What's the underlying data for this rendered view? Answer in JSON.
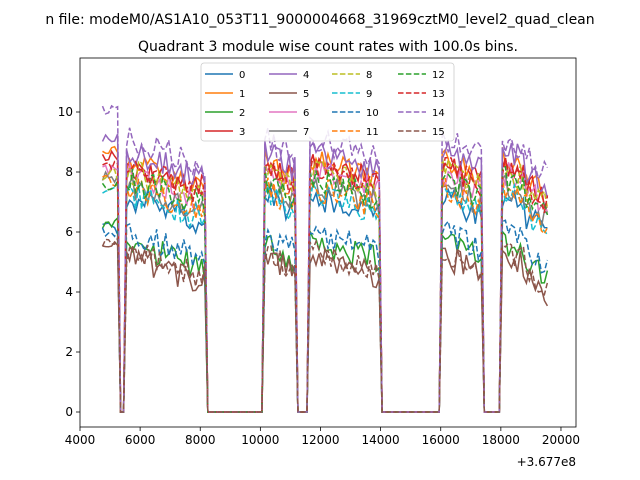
{
  "figure": {
    "suptitle": "n file: modeM0/AS1A10_053T11_9000004668_31969cztM0_level2_quad_clean",
    "offset_label": "+3.677e8"
  },
  "chart_data": {
    "type": "line",
    "title": "Quadrant 3 module wise count rates with 100.0s bins.",
    "xlabel": "",
    "ylabel": "",
    "xlim": [
      4000,
      20500
    ],
    "ylim": [
      -0.5,
      11.8
    ],
    "x_offset": 367700000,
    "xticks": [
      4000,
      6000,
      8000,
      10000,
      12000,
      14000,
      16000,
      18000,
      20000
    ],
    "yticks": [
      0,
      2,
      4,
      6,
      8,
      10
    ],
    "grid": false,
    "legend": {
      "placement": "top-center",
      "columns": 4
    },
    "segments": [
      [
        4750,
        5250
      ],
      [
        5550,
        8150
      ],
      [
        10150,
        11150
      ],
      [
        11650,
        13950
      ],
      [
        16050,
        17350
      ],
      [
        18050,
        19550
      ]
    ],
    "gaps_zero": [
      [
        5350,
        5450
      ],
      [
        8350,
        10050
      ],
      [
        11250,
        11550
      ],
      [
        14150,
        15950
      ],
      [
        17450,
        17950
      ]
    ],
    "series": [
      {
        "name": "0",
        "style": "solid",
        "color": "#1f77b4",
        "level": 7.2,
        "start": 6.1
      },
      {
        "name": "1",
        "style": "solid",
        "color": "#ff7f0e",
        "level": 8.4,
        "start": 8.8
      },
      {
        "name": "2",
        "style": "solid",
        "color": "#2ca02c",
        "level": 5.7,
        "start": 6.3
      },
      {
        "name": "3",
        "style": "solid",
        "color": "#d62728",
        "level": 8.3,
        "start": 8.5
      },
      {
        "name": "4",
        "style": "solid",
        "color": "#9467bd",
        "level": 8.7,
        "start": 9.2
      },
      {
        "name": "5",
        "style": "solid",
        "color": "#8c564b",
        "level": 5.2,
        "start": 5.5
      },
      {
        "name": "6",
        "style": "solid",
        "color": "#e377c2",
        "level": 8.0,
        "start": 8.1
      },
      {
        "name": "7",
        "style": "solid",
        "color": "#7f7f7f",
        "level": 7.6,
        "start": 7.8
      },
      {
        "name": "8",
        "style": "dashed",
        "color": "#bcbd22",
        "level": 8.1,
        "start": 7.9
      },
      {
        "name": "9",
        "style": "dashed",
        "color": "#17becf",
        "level": 7.3,
        "start": 7.4
      },
      {
        "name": "10",
        "style": "dashed",
        "color": "#1f77b4",
        "level": 6.0,
        "start": 6.0
      },
      {
        "name": "11",
        "style": "dashed",
        "color": "#ff7f0e",
        "level": 7.5,
        "start": 7.7
      },
      {
        "name": "12",
        "style": "dashed",
        "color": "#2ca02c",
        "level": 7.8,
        "start": 7.5
      },
      {
        "name": "13",
        "style": "dashed",
        "color": "#d62728",
        "level": 8.2,
        "start": 8.3
      },
      {
        "name": "14",
        "style": "dashed",
        "color": "#9467bd",
        "level": 9.1,
        "start": 10.1
      },
      {
        "name": "15",
        "style": "dashed",
        "color": "#8c564b",
        "level": 5.4,
        "start": 5.6
      }
    ]
  }
}
